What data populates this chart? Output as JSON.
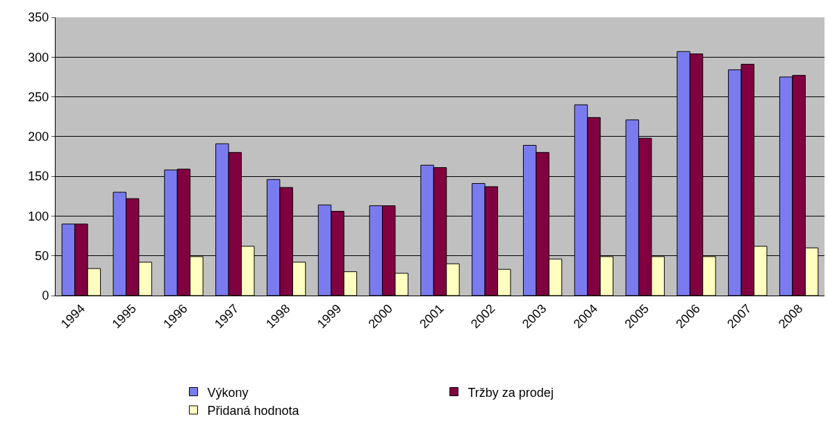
{
  "chart_data": {
    "type": "bar",
    "categories": [
      "1994",
      "1995",
      "1996",
      "1997",
      "1998",
      "1999",
      "2000",
      "2001",
      "2002",
      "2003",
      "2004",
      "2005",
      "2006",
      "2007",
      "2008"
    ],
    "series": [
      {
        "name": "Výkony",
        "color": "#7b7bf0",
        "values": [
          90,
          130,
          158,
          191,
          146,
          114,
          113,
          164,
          141,
          189,
          240,
          221,
          307,
          284,
          275
        ]
      },
      {
        "name": "Tržby za prodej",
        "color": "#800040",
        "values": [
          90,
          122,
          159,
          180,
          136,
          106,
          113,
          161,
          137,
          180,
          224,
          198,
          304,
          291,
          277
        ]
      },
      {
        "name": "Přidaná hodnota",
        "color": "#ffffc0",
        "values": [
          34,
          42,
          49,
          62,
          42,
          30,
          28,
          40,
          33,
          46,
          49,
          49,
          49,
          62,
          60
        ]
      }
    ],
    "ylim": [
      0,
      350
    ],
    "yticks": [
      0,
      50,
      100,
      150,
      200,
      250,
      300,
      350
    ],
    "grid": "y",
    "legend": "bottom"
  }
}
